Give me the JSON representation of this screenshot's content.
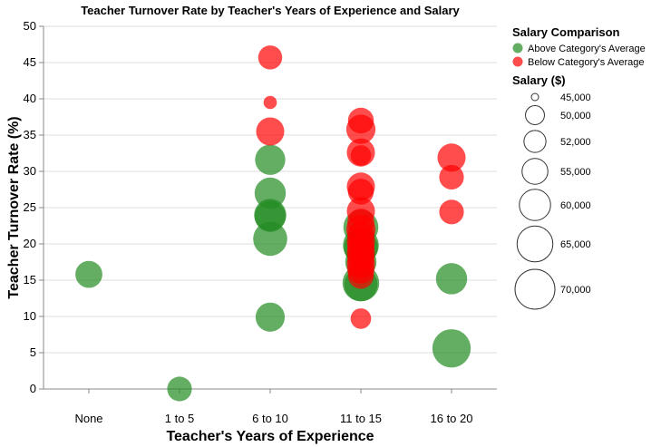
{
  "chart_data": {
    "type": "scatter",
    "title": "Teacher Turnover Rate by Teacher's Years of Experience and Salary",
    "xlabel": "Teacher's Years of Experience",
    "ylabel": "Teacher Turnover Rate (%)",
    "categories": [
      "None",
      "1 to 5",
      "6 to 10",
      "11 to 15",
      "16 to 20"
    ],
    "ylim": [
      0,
      50
    ],
    "yticks": [
      "0",
      "5",
      "10",
      "15",
      "20",
      "25",
      "30",
      "35",
      "40",
      "45",
      "50"
    ],
    "grid": true,
    "legend_placement": "right",
    "color_legend": {
      "title": "Salary Comparison",
      "entries": [
        {
          "label": "Above Category's Average",
          "color": "#228B22"
        },
        {
          "label": "Below Category's Average",
          "color": "#FF0000"
        }
      ]
    },
    "size_legend": {
      "title": "Salary ($)",
      "entries": [
        {
          "label": "45,000",
          "value": 45000
        },
        {
          "label": "50,000",
          "value": 50000
        },
        {
          "label": "52,000",
          "value": 52000
        },
        {
          "label": "55,000",
          "value": 55000
        },
        {
          "label": "60,000",
          "value": 60000
        },
        {
          "label": "65,000",
          "value": 65000
        },
        {
          "label": "70,000",
          "value": 70000
        }
      ]
    },
    "series": [
      {
        "name": "Above Category's Average",
        "color": "#228B22",
        "points": [
          {
            "x": "None",
            "y": 15.8,
            "salary": 56000
          },
          {
            "x": "1 to 5",
            "y": 0,
            "salary": 54000
          },
          {
            "x": "6 to 10",
            "y": 31.6,
            "salary": 59000
          },
          {
            "x": "6 to 10",
            "y": 27.0,
            "salary": 60000
          },
          {
            "x": "6 to 10",
            "y": 24.0,
            "salary": 61000
          },
          {
            "x": "6 to 10",
            "y": 23.8,
            "salary": 60000
          },
          {
            "x": "6 to 10",
            "y": 20.7,
            "salary": 63000
          },
          {
            "x": "6 to 10",
            "y": 9.9,
            "salary": 58000
          },
          {
            "x": "11 to 15",
            "y": 22.3,
            "salary": 64000
          },
          {
            "x": "11 to 15",
            "y": 19.8,
            "salary": 65000
          },
          {
            "x": "11 to 15",
            "y": 19.5,
            "salary": 63000
          },
          {
            "x": "11 to 15",
            "y": 17.5,
            "salary": 60000
          },
          {
            "x": "11 to 15",
            "y": 14.6,
            "salary": 66000
          },
          {
            "x": "11 to 15",
            "y": 14.4,
            "salary": 62000
          },
          {
            "x": "16 to 20",
            "y": 15.2,
            "salary": 60000
          },
          {
            "x": "16 to 20",
            "y": 5.6,
            "salary": 68000
          }
        ]
      },
      {
        "name": "Below Category's Average",
        "color": "#FF0000",
        "points": [
          {
            "x": "6 to 10",
            "y": 45.7,
            "salary": 53500
          },
          {
            "x": "6 to 10",
            "y": 39.5,
            "salary": 47000
          },
          {
            "x": "6 to 10",
            "y": 35.5,
            "salary": 57000
          },
          {
            "x": "11 to 15",
            "y": 37.0,
            "salary": 55000
          },
          {
            "x": "11 to 15",
            "y": 35.8,
            "salary": 58000
          },
          {
            "x": "11 to 15",
            "y": 32.6,
            "salary": 57000
          },
          {
            "x": "11 to 15",
            "y": 32.2,
            "salary": 51000
          },
          {
            "x": "11 to 15",
            "y": 27.9,
            "salary": 57000
          },
          {
            "x": "11 to 15",
            "y": 27.2,
            "salary": 55000
          },
          {
            "x": "11 to 15",
            "y": 24.5,
            "salary": 57000
          },
          {
            "x": "11 to 15",
            "y": 23.0,
            "salary": 56000
          },
          {
            "x": "11 to 15",
            "y": 22.0,
            "salary": 58000
          },
          {
            "x": "11 to 15",
            "y": 21.2,
            "salary": 56000
          },
          {
            "x": "11 to 15",
            "y": 20.3,
            "salary": 57000
          },
          {
            "x": "11 to 15",
            "y": 19.6,
            "salary": 56000
          },
          {
            "x": "11 to 15",
            "y": 18.8,
            "salary": 57000
          },
          {
            "x": "11 to 15",
            "y": 18.0,
            "salary": 56000
          },
          {
            "x": "11 to 15",
            "y": 17.2,
            "salary": 57000
          },
          {
            "x": "11 to 15",
            "y": 16.4,
            "salary": 56000
          },
          {
            "x": "11 to 15",
            "y": 15.6,
            "salary": 55000
          },
          {
            "x": "11 to 15",
            "y": 9.7,
            "salary": 51000
          },
          {
            "x": "16 to 20",
            "y": 31.9,
            "salary": 57000
          },
          {
            "x": "16 to 20",
            "y": 29.2,
            "salary": 54000
          },
          {
            "x": "16 to 20",
            "y": 24.4,
            "salary": 54000
          }
        ]
      }
    ]
  }
}
